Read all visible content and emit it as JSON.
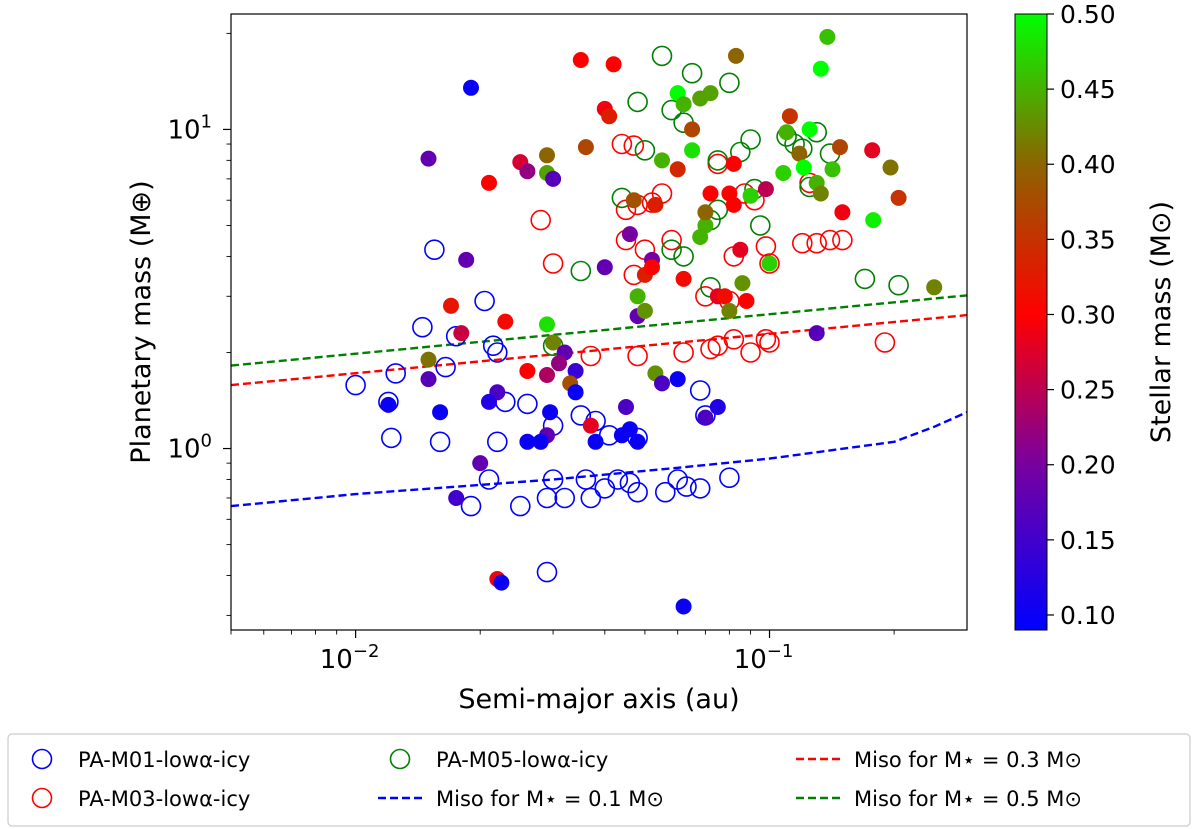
{
  "chart_data": {
    "type": "scatter",
    "title": "",
    "xlabel": "Semi-major axis (au)",
    "ylabel": "Planetary mass (M⊕)",
    "xscale": "log",
    "yscale": "log",
    "xlim": [
      0.005,
      0.3
    ],
    "ylim": [
      0.27,
      23
    ],
    "xticks": [
      {
        "value": 0.01,
        "base": "10",
        "exp": "−2"
      },
      {
        "value": 0.1,
        "base": "10",
        "exp": "−1"
      }
    ],
    "yticks": [
      {
        "value": 1,
        "base": "10",
        "exp": "0"
      },
      {
        "value": 10,
        "base": "10",
        "exp": "1"
      }
    ],
    "colorbar": {
      "label": "Stellar mass (M⊙)",
      "range": [
        0.09,
        0.5
      ],
      "ticks": [
        "0.10",
        "0.15",
        "0.20",
        "0.25",
        "0.30",
        "0.35",
        "0.40",
        "0.45",
        "0.50"
      ],
      "stops": [
        {
          "value": 0.09,
          "color": "#0000ff"
        },
        {
          "value": 0.2,
          "color": "#7800a0"
        },
        {
          "value": 0.3,
          "color": "#ff0000"
        },
        {
          "value": 0.4,
          "color": "#8c6400"
        },
        {
          "value": 0.5,
          "color": "#00ff00"
        }
      ]
    },
    "lines": [
      {
        "name": "Miso for M⋆ = 0.1 M⊙",
        "color": "#0000ff",
        "points": [
          [
            0.005,
            0.66
          ],
          [
            0.01,
            0.72
          ],
          [
            0.03,
            0.8
          ],
          [
            0.06,
            0.87
          ],
          [
            0.1,
            0.93
          ],
          [
            0.2,
            1.05
          ],
          [
            0.25,
            1.17
          ],
          [
            0.3,
            1.3
          ]
        ]
      },
      {
        "name": "Miso for M⋆ = 0.3 M⊙",
        "color": "#ff0000",
        "points": [
          [
            0.005,
            1.58
          ],
          [
            0.3,
            2.62
          ]
        ]
      },
      {
        "name": "Miso for M⋆ = 0.5 M⊙",
        "color": "#008000",
        "points": [
          [
            0.005,
            1.82
          ],
          [
            0.3,
            3.02
          ]
        ]
      }
    ],
    "open_series": [
      {
        "name": "PA-M01-lowα-icy",
        "color": "#0000ff",
        "points": [
          [
            0.0155,
            4.2
          ],
          [
            0.0145,
            2.4
          ],
          [
            0.0175,
            2.25
          ],
          [
            0.0205,
            2.9
          ],
          [
            0.0215,
            2.1
          ],
          [
            0.022,
            2.0
          ],
          [
            0.0165,
            1.8
          ],
          [
            0.0125,
            1.72
          ],
          [
            0.01,
            1.58
          ],
          [
            0.012,
            1.4
          ],
          [
            0.0122,
            1.08
          ],
          [
            0.016,
            1.05
          ],
          [
            0.023,
            1.4
          ],
          [
            0.026,
            1.38
          ],
          [
            0.035,
            1.27
          ],
          [
            0.038,
            1.22
          ],
          [
            0.03,
            1.18
          ],
          [
            0.041,
            1.1
          ],
          [
            0.048,
            1.08
          ],
          [
            0.022,
            1.05
          ],
          [
            0.068,
            1.52
          ],
          [
            0.07,
            1.27
          ],
          [
            0.021,
            0.8
          ],
          [
            0.019,
            0.66
          ],
          [
            0.025,
            0.66
          ],
          [
            0.029,
            0.7
          ],
          [
            0.03,
            0.8
          ],
          [
            0.032,
            0.7
          ],
          [
            0.036,
            0.8
          ],
          [
            0.037,
            0.7
          ],
          [
            0.04,
            0.75
          ],
          [
            0.043,
            0.8
          ],
          [
            0.046,
            0.78
          ],
          [
            0.048,
            0.73
          ],
          [
            0.056,
            0.73
          ],
          [
            0.06,
            0.8
          ],
          [
            0.063,
            0.76
          ],
          [
            0.068,
            0.75
          ],
          [
            0.08,
            0.81
          ],
          [
            0.029,
            0.41
          ]
        ]
      },
      {
        "name": "PA-M03-lowα-icy",
        "color": "#ff0000",
        "points": [
          [
            0.028,
            5.2
          ],
          [
            0.03,
            3.8
          ],
          [
            0.044,
            9.0
          ],
          [
            0.047,
            8.9
          ],
          [
            0.045,
            5.6
          ],
          [
            0.045,
            4.5
          ],
          [
            0.048,
            5.8
          ],
          [
            0.05,
            4.2
          ],
          [
            0.052,
            5.9
          ],
          [
            0.055,
            6.3
          ],
          [
            0.047,
            3.5
          ],
          [
            0.058,
            4.5
          ],
          [
            0.075,
            7.8
          ],
          [
            0.082,
            4.0
          ],
          [
            0.087,
            6.3
          ],
          [
            0.092,
            6.0
          ],
          [
            0.098,
            4.3
          ],
          [
            0.1,
            3.8
          ],
          [
            0.12,
            4.4
          ],
          [
            0.125,
            6.8
          ],
          [
            0.13,
            4.4
          ],
          [
            0.14,
            4.5
          ],
          [
            0.15,
            4.5
          ],
          [
            0.08,
            2.9
          ],
          [
            0.07,
            3.0
          ],
          [
            0.037,
            1.95
          ],
          [
            0.048,
            1.95
          ],
          [
            0.062,
            2.0
          ],
          [
            0.072,
            2.05
          ],
          [
            0.075,
            2.1
          ],
          [
            0.082,
            2.2
          ],
          [
            0.09,
            2.0
          ],
          [
            0.098,
            2.2
          ],
          [
            0.1,
            2.15
          ],
          [
            0.19,
            2.15
          ]
        ]
      },
      {
        "name": "PA-M05-lowα-icy",
        "color": "#008000",
        "points": [
          [
            0.055,
            17.0
          ],
          [
            0.065,
            15.0
          ],
          [
            0.08,
            14.0
          ],
          [
            0.048,
            12.2
          ],
          [
            0.058,
            11.5
          ],
          [
            0.062,
            10.5
          ],
          [
            0.075,
            8.0
          ],
          [
            0.085,
            8.5
          ],
          [
            0.09,
            9.3
          ],
          [
            0.11,
            9.5
          ],
          [
            0.115,
            9.0
          ],
          [
            0.12,
            8.7
          ],
          [
            0.13,
            9.8
          ],
          [
            0.14,
            8.4
          ],
          [
            0.05,
            8.6
          ],
          [
            0.044,
            6.1
          ],
          [
            0.058,
            4.2
          ],
          [
            0.062,
            4.0
          ],
          [
            0.072,
            5.2
          ],
          [
            0.075,
            5.6
          ],
          [
            0.092,
            6.5
          ],
          [
            0.095,
            5.0
          ],
          [
            0.125,
            6.6
          ],
          [
            0.035,
            3.6
          ],
          [
            0.072,
            3.2
          ],
          [
            0.17,
            3.4
          ],
          [
            0.205,
            3.25
          ],
          [
            0.03,
            2.1
          ]
        ]
      }
    ],
    "filled_points": [
      [
        0.019,
        13.5,
        0.1
      ],
      [
        0.015,
        8.1,
        0.18
      ],
      [
        0.021,
        6.8,
        0.3
      ],
      [
        0.0185,
        3.9,
        0.18
      ],
      [
        0.025,
        7.9,
        0.27
      ],
      [
        0.026,
        7.4,
        0.22
      ],
      [
        0.029,
        7.3,
        0.44
      ],
      [
        0.029,
        8.3,
        0.4
      ],
      [
        0.03,
        7.0,
        0.17
      ],
      [
        0.035,
        16.5,
        0.3
      ],
      [
        0.036,
        8.8,
        0.37
      ],
      [
        0.04,
        11.6,
        0.29
      ],
      [
        0.041,
        11.0,
        0.33
      ],
      [
        0.042,
        16.0,
        0.3
      ],
      [
        0.04,
        3.7,
        0.18
      ],
      [
        0.047,
        6.0,
        0.38
      ],
      [
        0.046,
        4.7,
        0.2
      ],
      [
        0.05,
        3.5,
        0.33
      ],
      [
        0.048,
        2.6,
        0.18
      ],
      [
        0.048,
        3.0,
        0.45
      ],
      [
        0.05,
        2.7,
        0.43
      ],
      [
        0.052,
        3.9,
        0.2
      ],
      [
        0.052,
        3.7,
        0.3
      ],
      [
        0.053,
        5.8,
        0.33
      ],
      [
        0.055,
        8.0,
        0.45
      ],
      [
        0.06,
        13.0,
        0.5
      ],
      [
        0.062,
        12.0,
        0.45
      ],
      [
        0.06,
        7.5,
        0.34
      ],
      [
        0.065,
        8.6,
        0.48
      ],
      [
        0.065,
        10.0,
        0.37
      ],
      [
        0.068,
        12.5,
        0.44
      ],
      [
        0.072,
        13.0,
        0.44
      ],
      [
        0.068,
        4.6,
        0.45
      ],
      [
        0.07,
        5.0,
        0.45
      ],
      [
        0.062,
        3.4,
        0.31
      ],
      [
        0.072,
        6.3,
        0.3
      ],
      [
        0.07,
        5.5,
        0.4
      ],
      [
        0.075,
        3.0,
        0.28
      ],
      [
        0.078,
        3.0,
        0.31
      ],
      [
        0.08,
        6.3,
        0.3
      ],
      [
        0.082,
        5.8,
        0.3
      ],
      [
        0.082,
        7.8,
        0.3
      ],
      [
        0.083,
        17.0,
        0.4
      ],
      [
        0.085,
        4.2,
        0.28
      ],
      [
        0.08,
        2.7,
        0.42
      ],
      [
        0.086,
        3.3,
        0.43
      ],
      [
        0.088,
        2.9,
        0.3
      ],
      [
        0.09,
        6.2,
        0.47
      ],
      [
        0.098,
        6.5,
        0.25
      ],
      [
        0.1,
        3.8,
        0.47
      ],
      [
        0.108,
        7.3,
        0.47
      ],
      [
        0.11,
        9.8,
        0.45
      ],
      [
        0.112,
        11.0,
        0.35
      ],
      [
        0.118,
        8.4,
        0.4
      ],
      [
        0.121,
        7.6,
        0.5
      ],
      [
        0.125,
        10.0,
        0.5
      ],
      [
        0.13,
        6.8,
        0.45
      ],
      [
        0.133,
        6.3,
        0.42
      ],
      [
        0.133,
        15.5,
        0.5
      ],
      [
        0.138,
        19.5,
        0.46
      ],
      [
        0.142,
        7.5,
        0.46
      ],
      [
        0.148,
        8.8,
        0.37
      ],
      [
        0.15,
        5.5,
        0.29
      ],
      [
        0.178,
        5.2,
        0.49
      ],
      [
        0.177,
        8.6,
        0.28
      ],
      [
        0.196,
        7.6,
        0.41
      ],
      [
        0.205,
        6.1,
        0.35
      ],
      [
        0.25,
        3.2,
        0.42
      ],
      [
        0.13,
        2.3,
        0.17
      ],
      [
        0.017,
        2.8,
        0.32
      ],
      [
        0.018,
        2.3,
        0.26
      ],
      [
        0.023,
        2.5,
        0.31
      ],
      [
        0.029,
        2.45,
        0.48
      ],
      [
        0.03,
        2.15,
        0.42
      ],
      [
        0.032,
        2.0,
        0.18
      ],
      [
        0.031,
        1.85,
        0.22
      ],
      [
        0.026,
        1.75,
        0.3
      ],
      [
        0.029,
        1.7,
        0.24
      ],
      [
        0.034,
        1.75,
        0.14
      ],
      [
        0.033,
        1.6,
        0.38
      ],
      [
        0.015,
        1.9,
        0.41
      ],
      [
        0.015,
        1.65,
        0.17
      ],
      [
        0.022,
        1.5,
        0.16
      ],
      [
        0.021,
        1.4,
        0.12
      ],
      [
        0.016,
        1.3,
        0.1
      ],
      [
        0.012,
        1.37,
        0.1
      ],
      [
        0.0295,
        1.3,
        0.1
      ],
      [
        0.034,
        1.5,
        0.1
      ],
      [
        0.029,
        1.1,
        0.18
      ],
      [
        0.037,
        1.18,
        0.28
      ],
      [
        0.045,
        1.35,
        0.16
      ],
      [
        0.046,
        1.15,
        0.1
      ],
      [
        0.048,
        1.05,
        0.1
      ],
      [
        0.044,
        1.1,
        0.1
      ],
      [
        0.038,
        1.05,
        0.1
      ],
      [
        0.053,
        1.72,
        0.43
      ],
      [
        0.055,
        1.6,
        0.16
      ],
      [
        0.06,
        1.65,
        0.1
      ],
      [
        0.07,
        1.25,
        0.16
      ],
      [
        0.075,
        1.35,
        0.12
      ],
      [
        0.028,
        1.05,
        0.1
      ],
      [
        0.026,
        1.05,
        0.1
      ],
      [
        0.02,
        0.9,
        0.18
      ],
      [
        0.0175,
        0.7,
        0.15
      ],
      [
        0.022,
        0.39,
        0.29
      ],
      [
        0.0225,
        0.38,
        0.1
      ],
      [
        0.062,
        0.32,
        0.1
      ]
    ],
    "legend": {
      "placement": "bottom",
      "entries": [
        {
          "label": "PA-M01-lowα-icy",
          "kind": "open",
          "color": "#0000ff"
        },
        {
          "label": "PA-M03-lowα-icy",
          "kind": "open",
          "color": "#ff0000"
        },
        {
          "label": "PA-M05-lowα-icy",
          "kind": "open",
          "color": "#008000"
        },
        {
          "label": "Miso for M⋆ = 0.1 M⊙",
          "kind": "dashed",
          "color": "#0000ff"
        },
        {
          "label": "Miso for M⋆ = 0.3 M⊙",
          "kind": "dashed",
          "color": "#ff0000"
        },
        {
          "label": "Miso for M⋆ = 0.5 M⊙",
          "kind": "dashed",
          "color": "#008000"
        }
      ]
    }
  }
}
